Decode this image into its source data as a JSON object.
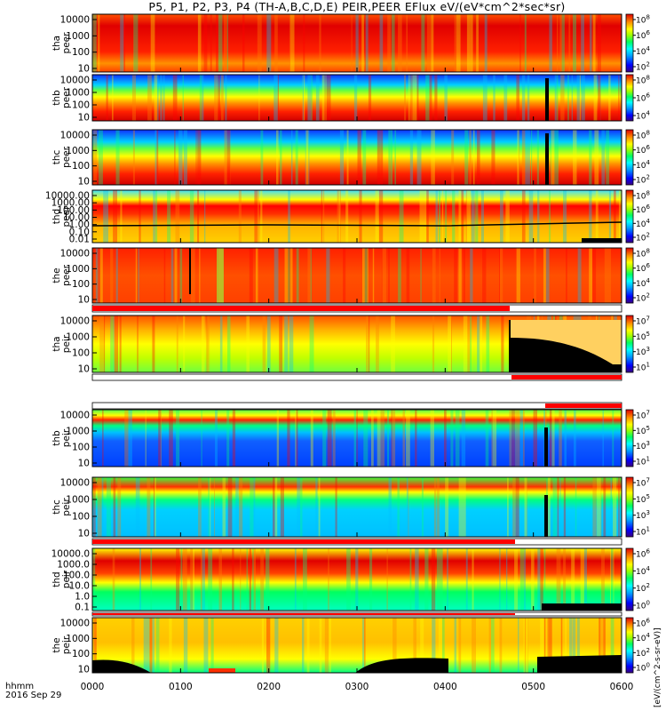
{
  "title": "P5, P1, P2, P3, P4 (TH-A,B,C,D,E) PEIR,PEER EFlux eV/(eV*cm^2*sec*sr)",
  "footer": {
    "time_label": "hhmm",
    "date_label": "2016 Sep 29"
  },
  "colorbar_units": "[eV/(cm^2-s-sr-eV)]",
  "colors": {
    "spectrogram_scale": [
      "#2a0070",
      "#0000ff",
      "#00a0ff",
      "#00ffff",
      "#00ff80",
      "#90ff00",
      "#ffff00",
      "#ffa000",
      "#ff3000",
      "#d00000"
    ],
    "quality_bar_fill": "#ff0000",
    "missing_data": "#000000"
  },
  "chart_data": {
    "type": "heatmap",
    "x_ticks": [
      "0000",
      "0100",
      "0200",
      "0300",
      "0400",
      "0500",
      "0600"
    ],
    "x_range": [
      "0000",
      "0600"
    ],
    "panels": [
      {
        "probe": "tha",
        "species": "peer",
        "ylabel": "tha\npeer",
        "y_ticks": [
          "10",
          "100",
          "1000",
          "10000"
        ],
        "cb_ticks": [
          "10^2",
          "10^4",
          "10^6",
          "10^8"
        ],
        "quality_bar": false,
        "log_y": true
      },
      {
        "probe": "thb",
        "species": "peer",
        "ylabel": "thb\npeer",
        "y_ticks": [
          "10",
          "100",
          "1000",
          "10000"
        ],
        "cb_ticks": [
          "10^4",
          "10^6",
          "10^8"
        ],
        "quality_bar": false,
        "log_y": true
      },
      {
        "probe": "thc",
        "species": "peer",
        "ylabel": "thc\npeer",
        "y_ticks": [
          "10",
          "100",
          "1000",
          "10000"
        ],
        "cb_ticks": [
          "10^2",
          "10^4",
          "10^6",
          "10^8"
        ],
        "quality_bar": false,
        "log_y": true
      },
      {
        "probe": "thd",
        "species": "peer",
        "ylabel": "thd\npeer",
        "y_ticks": [
          "0.01",
          "0.10",
          "1.00",
          "10.00",
          "100.00",
          "1000.00",
          "10000.00"
        ],
        "cb_ticks": [
          "10^2",
          "10^4",
          "10^6",
          "10^8"
        ],
        "quality_bar": false,
        "log_y": true
      },
      {
        "probe": "the",
        "species": "peer",
        "ylabel": "the\npeer",
        "y_ticks": [
          "10",
          "100",
          "1000",
          "10000"
        ],
        "cb_ticks": [
          "10^2",
          "10^4",
          "10^6",
          "10^8"
        ],
        "quality_bar": true,
        "log_y": true
      },
      {
        "probe": "tha",
        "species": "peir",
        "ylabel": "tha\npeir",
        "y_ticks": [
          "10",
          "100",
          "1000",
          "10000"
        ],
        "cb_ticks": [
          "10^1",
          "10^3",
          "10^5",
          "10^7"
        ],
        "quality_bar": true,
        "log_y": true
      },
      {
        "probe": "thb",
        "species": "peir",
        "ylabel": "thb\npeir",
        "y_ticks": [
          "10",
          "100",
          "1000",
          "10000"
        ],
        "cb_ticks": [
          "10^1",
          "10^3",
          "10^5",
          "10^7"
        ],
        "quality_bar": true,
        "log_y": true
      },
      {
        "probe": "thc",
        "species": "peir",
        "ylabel": "thc\npeir",
        "y_ticks": [
          "10",
          "100",
          "1000",
          "10000"
        ],
        "cb_ticks": [
          "10^1",
          "10^3",
          "10^5",
          "10^7"
        ],
        "quality_bar": true,
        "log_y": true
      },
      {
        "probe": "thd",
        "species": "peir",
        "ylabel": "thd\npeir",
        "y_ticks": [
          "0.1",
          "1.0",
          "10.0",
          "100.0",
          "1000.0",
          "10000.0"
        ],
        "cb_ticks": [
          "10^0",
          "10^2",
          "10^4",
          "10^6"
        ],
        "quality_bar": true,
        "log_y": true
      },
      {
        "probe": "the",
        "species": "peir",
        "ylabel": "the\npeir",
        "y_ticks": [
          "10",
          "100",
          "1000",
          "10000"
        ],
        "cb_ticks": [
          "10^0",
          "10^2",
          "10^4",
          "10^6"
        ],
        "quality_bar": true,
        "log_y": true
      }
    ]
  }
}
